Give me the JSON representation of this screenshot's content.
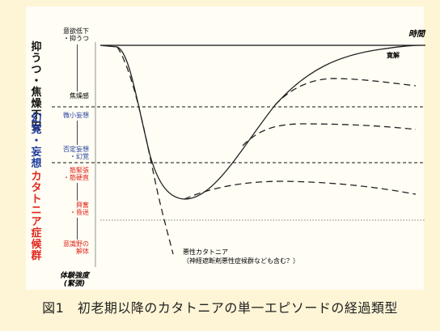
{
  "axis": {
    "x_label": "時間",
    "y_label_line1": "体験強度",
    "y_label_line2": "(緊張)"
  },
  "phases": [
    {
      "name": "抑うつ・焦燥不安",
      "color": "#111111",
      "chars": [
        "抑",
        "う",
        "つ",
        "・",
        "焦",
        "燥",
        "不",
        "安"
      ]
    },
    {
      "name": "幻覚・妄想",
      "color": "#1f3a9e",
      "chars": [
        "幻",
        "覚",
        "・",
        "妄",
        "想"
      ]
    },
    {
      "name": "カタトニア症候群",
      "color": "#e0261c",
      "chars": [
        "カ",
        "タ",
        "ト",
        "ニ",
        "ア",
        "症",
        "候",
        "群"
      ]
    }
  ],
  "scale_labels": {
    "top": [
      "意欲低下",
      "・抑うつ"
    ],
    "anxiety": "焦燥感",
    "minor_halluc": "微小妄想",
    "major_halluc": [
      "否定妄想",
      "・幻覚"
    ],
    "tone": [
      "筋緊張",
      "・筋硬直"
    ],
    "stupor": [
      "興奮",
      "・昏迷"
    ],
    "collapse": [
      "意識野の",
      "解体"
    ]
  },
  "curve_labels": {
    "remission": "寛解",
    "malignant_line1": "悪性カタトニア",
    "malignant_line2": "（神経遮断剤悪性症候群なども含む？）"
  },
  "caption": "図1　初老期以降のカタトニアの単一エピソードの経過類型"
}
